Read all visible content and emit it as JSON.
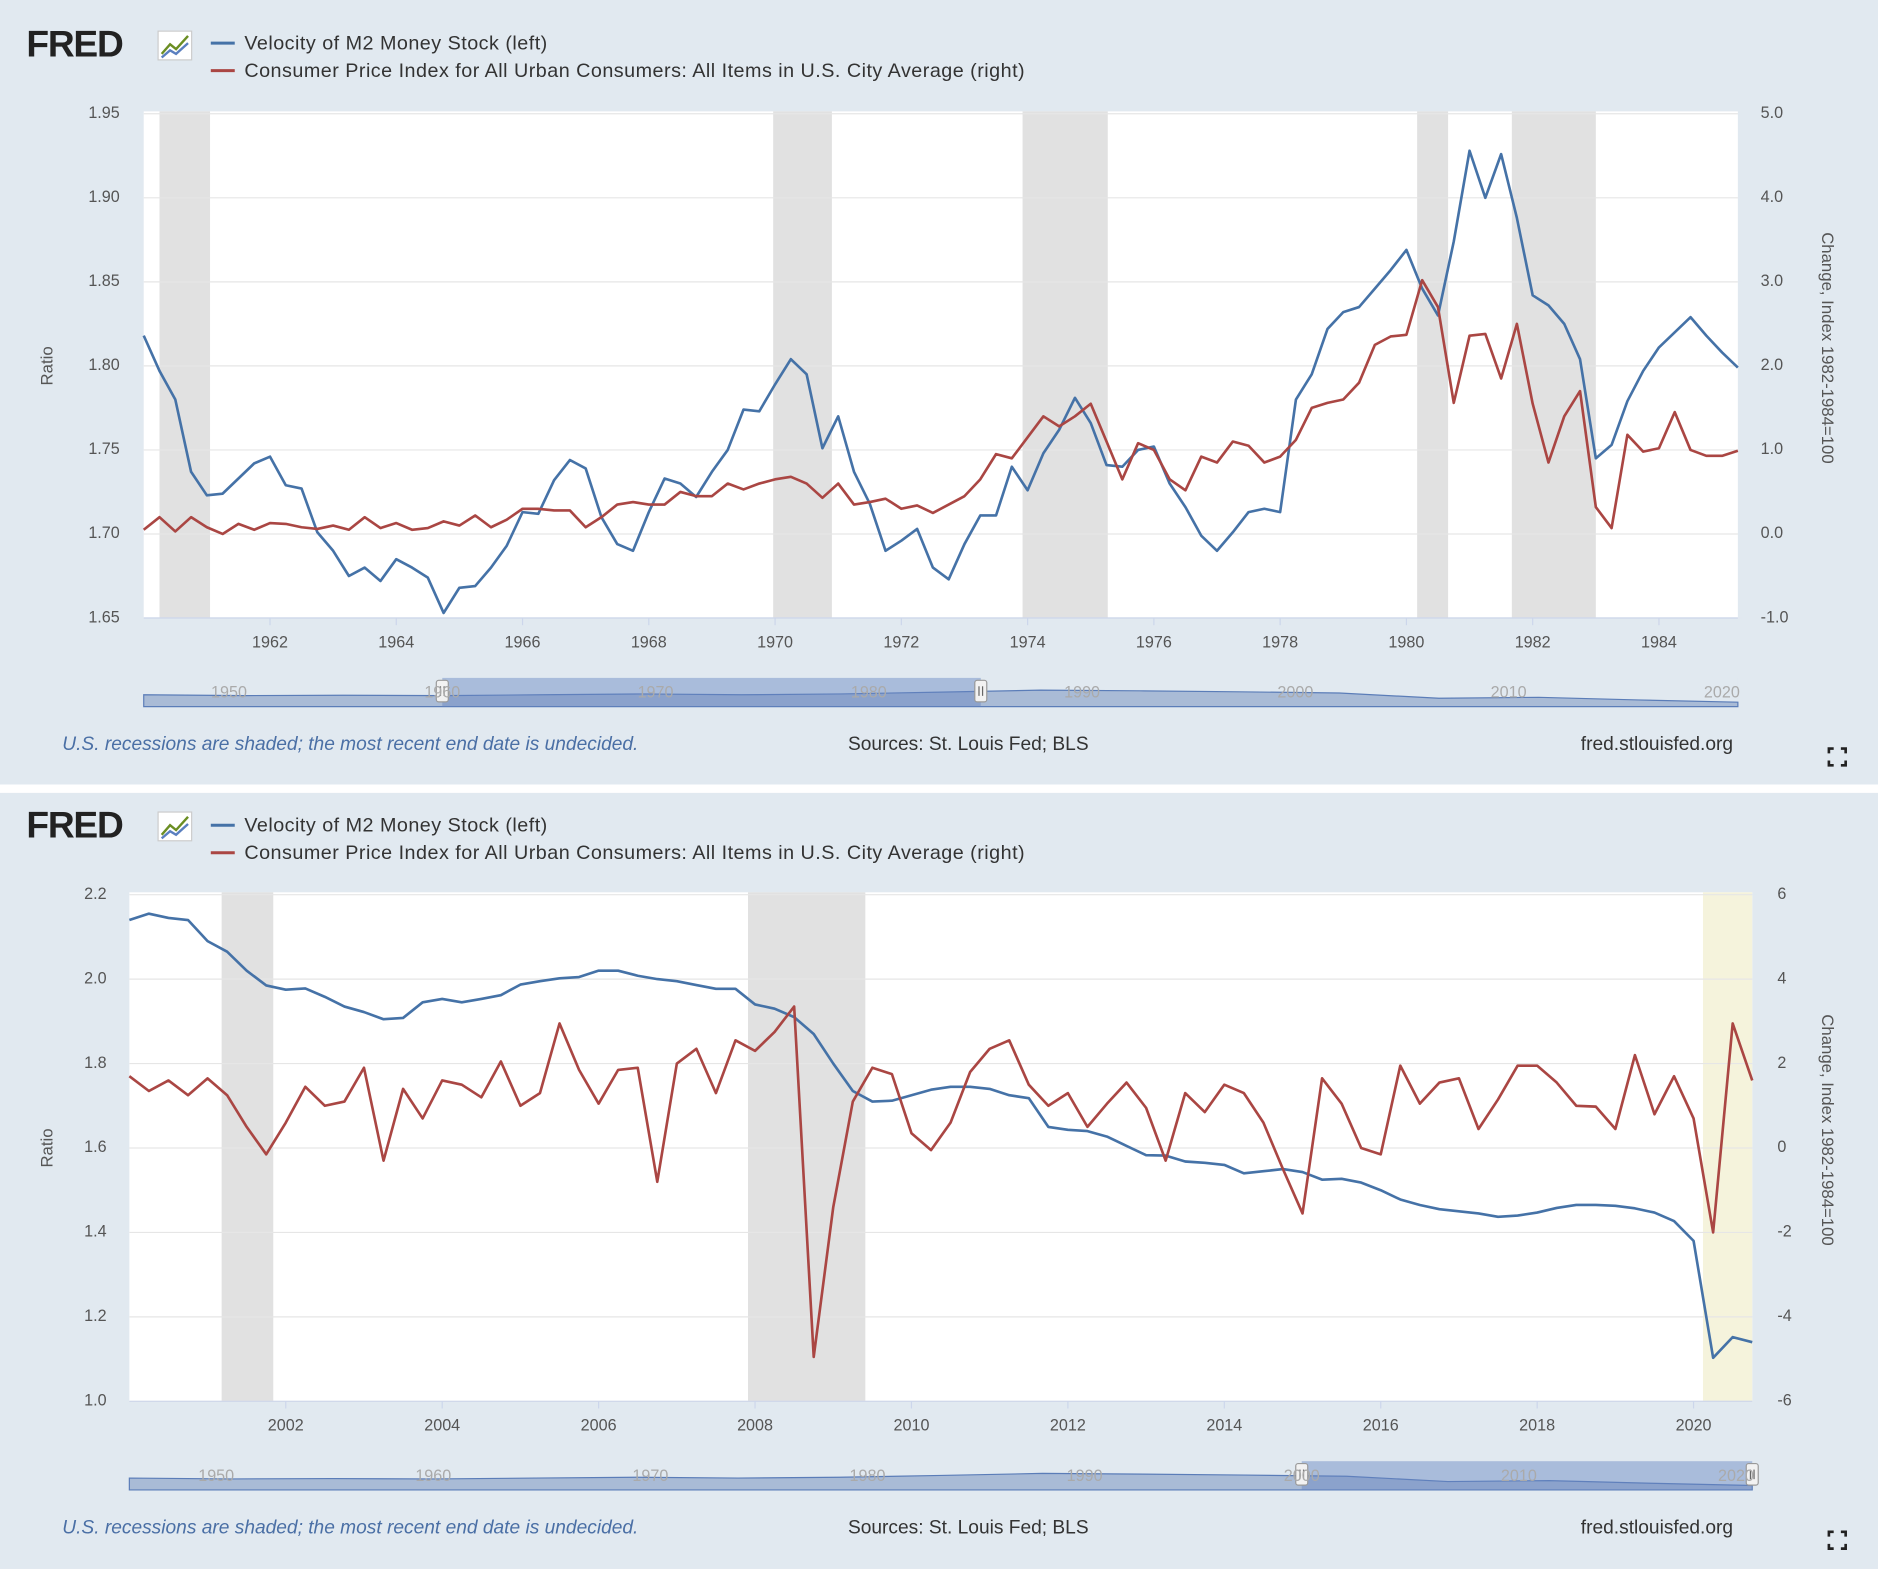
{
  "chart_data": [
    {
      "type": "line",
      "logo": "FRED",
      "ylabel": "Ratio",
      "y2label": "Change, Index 1982-1984=100",
      "xlim": [
        1960,
        1985.25
      ],
      "xticks": [
        1962,
        1964,
        1966,
        1968,
        1970,
        1972,
        1974,
        1976,
        1978,
        1980,
        1982,
        1984
      ],
      "ylim": [
        1.65,
        1.95
      ],
      "yticks": [
        1.65,
        {
          "value": 1.7,
          "label": "1.70"
        },
        1.75,
        {
          "value": 1.8,
          "label": "1.80"
        },
        1.85,
        {
          "value": 1.9,
          "label": "1.90"
        },
        1.95
      ],
      "y2lim": [
        -1,
        5
      ],
      "y2ticks": [
        {
          "value": -1,
          "label": "-1.0"
        },
        {
          "value": 0,
          "label": "0.0"
        },
        {
          "value": 1,
          "label": "1.0"
        },
        {
          "value": 2,
          "label": "2.0"
        },
        {
          "value": 3,
          "label": "3.0"
        },
        {
          "value": 4,
          "label": "4.0"
        },
        {
          "value": 5,
          "label": "5.0"
        }
      ],
      "grid": true,
      "recessions": [
        [
          1960.25,
          1961.05
        ],
        [
          1969.97,
          1970.9
        ],
        [
          1973.92,
          1975.27
        ],
        [
          1980.17,
          1980.66
        ],
        [
          1981.67,
          1983.0
        ]
      ],
      "navigator": {
        "xlim": [
          1946,
          2020.75
        ],
        "xticks": [
          1950,
          1960,
          1970,
          1980,
          1990,
          2000,
          2010,
          2020
        ]
      },
      "note": "U.S. recessions are shaded; the most recent end date is undecided.",
      "source": "Sources: St. Louis Fed; BLS",
      "site": "fred.stlouisfed.org",
      "x": [
        1960,
        1960.25,
        1960.5,
        1960.75,
        1961,
        1961.25,
        1961.5,
        1961.75,
        1962,
        1962.25,
        1962.5,
        1962.75,
        1963,
        1963.25,
        1963.5,
        1963.75,
        1964,
        1964.25,
        1964.5,
        1964.75,
        1965,
        1965.25,
        1965.5,
        1965.75,
        1966,
        1966.25,
        1966.5,
        1966.75,
        1967,
        1967.25,
        1967.5,
        1967.75,
        1968,
        1968.25,
        1968.5,
        1968.75,
        1969,
        1969.25,
        1969.5,
        1969.75,
        1970,
        1970.25,
        1970.5,
        1970.75,
        1971,
        1971.25,
        1971.5,
        1971.75,
        1972,
        1972.25,
        1972.5,
        1972.75,
        1973,
        1973.25,
        1973.5,
        1973.75,
        1974,
        1974.25,
        1974.5,
        1974.75,
        1975,
        1975.25,
        1975.5,
        1975.75,
        1976,
        1976.25,
        1976.5,
        1976.75,
        1977,
        1977.25,
        1977.5,
        1977.75,
        1978,
        1978.25,
        1978.5,
        1978.75,
        1979,
        1979.25,
        1979.5,
        1979.75,
        1980,
        1980.25,
        1980.5,
        1980.75,
        1981,
        1981.25,
        1981.5,
        1981.75,
        1982,
        1982.25,
        1982.5,
        1982.75,
        1983,
        1983.25,
        1983.5,
        1983.75,
        1984,
        1984.25,
        1984.5,
        1984.75,
        1985,
        1985.25
      ],
      "series": [
        {
          "name": "Velocity of M2 Money Stock (left)",
          "color": "#4572a7",
          "values": [
            1.818,
            1.797,
            1.78,
            1.737,
            1.723,
            1.724,
            1.733,
            1.742,
            1.746,
            1.729,
            1.727,
            1.701,
            1.69,
            1.675,
            1.68,
            1.672,
            1.685,
            1.68,
            1.674,
            1.653,
            1.668,
            1.669,
            1.68,
            1.693,
            1.713,
            1.712,
            1.732,
            1.744,
            1.739,
            1.71,
            1.694,
            1.69,
            1.713,
            1.733,
            1.73,
            1.722,
            1.737,
            1.75,
            1.774,
            1.773,
            1.789,
            1.804,
            1.795,
            1.751,
            1.77,
            1.737,
            1.718,
            1.69,
            1.696,
            1.703,
            1.68,
            1.673,
            1.694,
            1.711,
            1.711,
            1.74,
            1.726,
            1.748,
            1.762,
            1.781,
            1.766,
            1.741,
            1.74,
            1.75,
            1.752,
            1.73,
            1.716,
            1.699,
            1.69,
            1.701,
            1.713,
            1.715,
            1.713,
            1.78,
            1.795,
            1.822,
            1.832,
            1.835,
            1.846,
            1.857,
            1.869,
            1.846,
            1.83,
            1.874,
            1.928,
            1.9,
            1.926,
            1.888,
            1.842,
            1.836,
            1.825,
            1.804,
            1.745,
            1.753,
            1.779,
            1.797,
            1.811,
            1.82,
            1.829,
            1.818,
            1.808,
            1.799
          ]
        },
        {
          "name": "Consumer Price Index for All Urban Consumers: All Items in U.S. City Average (right)",
          "color": "#aa4643",
          "axis": "y2",
          "values": [
            0.05,
            0.2,
            0.03,
            0.2,
            0.08,
            0,
            0.12,
            0.05,
            0.13,
            0.12,
            0.08,
            0.06,
            0.1,
            0.05,
            0.2,
            0.07,
            0.13,
            0.05,
            0.07,
            0.15,
            0.1,
            0.22,
            0.08,
            0.17,
            0.3,
            0.3,
            0.28,
            0.28,
            0.08,
            0.2,
            0.35,
            0.38,
            0.35,
            0.35,
            0.5,
            0.45,
            0.45,
            0.6,
            0.53,
            0.6,
            0.65,
            0.68,
            0.6,
            0.43,
            0.6,
            0.35,
            0.38,
            0.42,
            0.3,
            0.34,
            0.25,
            0.35,
            0.45,
            0.65,
            0.95,
            0.9,
            1.15,
            1.4,
            1.28,
            1.4,
            1.55,
            1.1,
            0.65,
            1.08,
            1.0,
            0.65,
            0.52,
            0.92,
            0.85,
            1.1,
            1.05,
            0.85,
            0.92,
            1.12,
            1.5,
            1.56,
            1.6,
            1.8,
            2.25,
            2.35,
            2.37,
            3.02,
            2.7,
            1.56,
            2.36,
            2.38,
            1.85,
            2.5,
            1.55,
            0.85,
            1.4,
            1.7,
            0.32,
            0.07,
            1.18,
            0.98,
            1.02,
            1.45,
            1.0,
            0.93,
            0.93,
            0.99
          ]
        }
      ]
    },
    {
      "type": "line",
      "logo": "FRED",
      "ylabel": "Ratio",
      "y2label": "Change, Index 1982-1984=100",
      "xlim": [
        2000,
        2020.75
      ],
      "xticks": [
        2002,
        2004,
        2006,
        2008,
        2010,
        2012,
        2014,
        2016,
        2018,
        2020
      ],
      "ylim": [
        1.0,
        2.2
      ],
      "yticks": [
        {
          "value": 1.0,
          "label": "1.0"
        },
        1.2,
        1.4,
        1.6,
        1.8,
        {
          "value": 2.0,
          "label": "2.0"
        },
        2.2
      ],
      "y2lim": [
        -6,
        6
      ],
      "y2ticks": [
        -6,
        -4,
        -2,
        0,
        2,
        4,
        6
      ],
      "grid": true,
      "recessions": [
        [
          2001.18,
          2001.84
        ],
        [
          2007.91,
          2009.41
        ]
      ],
      "ongoing_recession": [
        2020.12,
        2020.75
      ],
      "navigator": {
        "xlim": [
          1946,
          2020.75
        ],
        "xticks": [
          1950,
          1960,
          1970,
          1980,
          1990,
          2000,
          2010,
          2020
        ]
      },
      "note": "U.S. recessions are shaded; the most recent end date is undecided.",
      "source": "Sources: St. Louis Fed; BLS",
      "site": "fred.stlouisfed.org",
      "x": [
        2000,
        2000.25,
        2000.5,
        2000.75,
        2001,
        2001.25,
        2001.5,
        2001.75,
        2002,
        2002.25,
        2002.5,
        2002.75,
        2003,
        2003.25,
        2003.5,
        2003.75,
        2004,
        2004.25,
        2004.5,
        2004.75,
        2005,
        2005.25,
        2005.5,
        2005.75,
        2006,
        2006.25,
        2006.5,
        2006.75,
        2007,
        2007.25,
        2007.5,
        2007.75,
        2008,
        2008.25,
        2008.5,
        2008.75,
        2009,
        2009.25,
        2009.5,
        2009.75,
        2010,
        2010.25,
        2010.5,
        2010.75,
        2011,
        2011.25,
        2011.5,
        2011.75,
        2012,
        2012.25,
        2012.5,
        2012.75,
        2013,
        2013.25,
        2013.5,
        2013.75,
        2014,
        2014.25,
        2014.5,
        2014.75,
        2015,
        2015.25,
        2015.5,
        2015.75,
        2016,
        2016.25,
        2016.5,
        2016.75,
        2017,
        2017.25,
        2017.5,
        2017.75,
        2018,
        2018.25,
        2018.5,
        2018.75,
        2019,
        2019.25,
        2019.5,
        2019.75,
        2020,
        2020.25,
        2020.5,
        2020.75
      ],
      "series": [
        {
          "name": "Velocity of M2 Money Stock (left)",
          "color": "#4572a7",
          "values": [
            2.14,
            2.155,
            2.145,
            2.14,
            2.09,
            2.065,
            2.02,
            1.985,
            1.975,
            1.978,
            1.958,
            1.935,
            1.922,
            1.905,
            1.908,
            1.945,
            1.953,
            1.945,
            1.953,
            1.962,
            1.987,
            1.995,
            2.002,
            2.005,
            2.02,
            2.02,
            2.008,
            2.0,
            1.995,
            1.986,
            1.977,
            1.977,
            1.94,
            1.93,
            1.91,
            1.87,
            1.8,
            1.735,
            1.71,
            1.712,
            1.725,
            1.738,
            1.745,
            1.745,
            1.74,
            1.725,
            1.718,
            1.65,
            1.643,
            1.64,
            1.627,
            1.605,
            1.583,
            1.582,
            1.568,
            1.565,
            1.56,
            1.54,
            1.545,
            1.55,
            1.543,
            1.525,
            1.527,
            1.518,
            1.5,
            1.478,
            1.465,
            1.455,
            1.45,
            1.445,
            1.437,
            1.44,
            1.447,
            1.458,
            1.465,
            1.465,
            1.463,
            1.457,
            1.447,
            1.427,
            1.38,
            1.103,
            1.152,
            1.14
          ]
        },
        {
          "name": "Consumer Price Index for All Urban Consumers: All Items in U.S. City Average (right)",
          "color": "#aa4643",
          "axis": "y2",
          "values": [
            1.7,
            1.35,
            1.6,
            1.25,
            1.65,
            1.25,
            0.5,
            -0.15,
            0.6,
            1.45,
            1.0,
            1.1,
            1.9,
            -0.3,
            1.4,
            0.7,
            1.6,
            1.5,
            1.2,
            2.05,
            1.0,
            1.3,
            2.95,
            1.85,
            1.05,
            1.85,
            1.9,
            -0.8,
            2.0,
            2.35,
            1.3,
            2.55,
            2.3,
            2.75,
            3.35,
            -4.95,
            -1.4,
            1.1,
            1.9,
            1.75,
            0.35,
            -0.05,
            0.6,
            1.8,
            2.35,
            2.55,
            1.5,
            1.0,
            1.3,
            0.5,
            1.05,
            1.55,
            0.95,
            -0.3,
            1.3,
            0.85,
            1.5,
            1.3,
            0.6,
            -0.5,
            -1.55,
            1.65,
            1.05,
            0,
            -0.15,
            1.95,
            1.05,
            1.55,
            1.65,
            0.45,
            1.15,
            1.95,
            1.95,
            1.55,
            1.0,
            0.98,
            0.45,
            2.2,
            0.8,
            1.7,
            0.7,
            -2.0,
            2.95,
            1.6
          ]
        }
      ]
    }
  ]
}
